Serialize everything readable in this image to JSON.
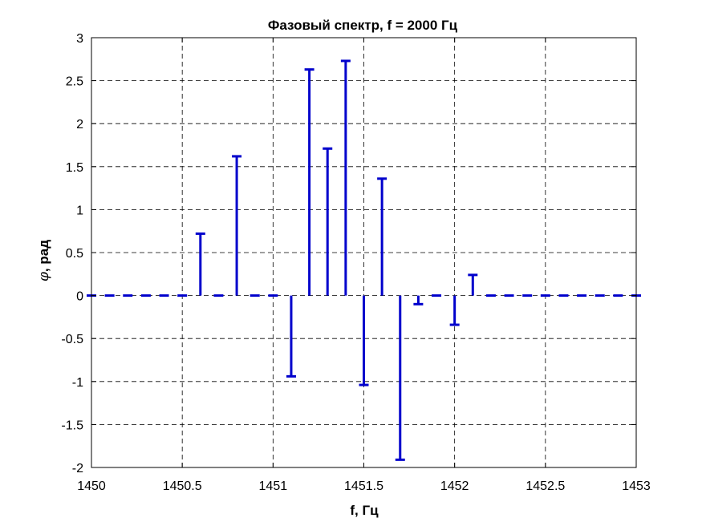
{
  "chart_data": {
    "type": "stem",
    "title": "Фазовый спектр, f = 2000 Гц",
    "xlabel": "f, Гц",
    "ylabel_symbol": "φ",
    "ylabel_rest": ", рад",
    "xlim": [
      1450,
      1453
    ],
    "ylim": [
      -2,
      3
    ],
    "grid": true,
    "x_ticks": [
      1450,
      1450.5,
      1451,
      1451.5,
      1452,
      1452.5,
      1453
    ],
    "x_tick_labels": [
      "1450",
      "1450.5",
      "1451",
      "1451.5",
      "1452",
      "1452.5",
      "1453"
    ],
    "y_ticks": [
      -2,
      -1.5,
      -1,
      -0.5,
      0,
      0.5,
      1,
      1.5,
      2,
      2.5,
      3
    ],
    "y_tick_labels": [
      "-2",
      "-1.5",
      "-1",
      "-0.5",
      "0",
      "0.5",
      "1",
      "1.5",
      "2",
      "2.5",
      "3"
    ],
    "color": "#0000cc",
    "series": [
      {
        "x": [
          1450.0,
          1450.1,
          1450.2,
          1450.3,
          1450.4,
          1450.5,
          1450.6,
          1450.7,
          1450.8,
          1450.9,
          1451.0,
          1451.1,
          1451.2,
          1451.3,
          1451.4,
          1451.5,
          1451.6,
          1451.7,
          1451.8,
          1451.9,
          1452.0,
          1452.1,
          1452.2,
          1452.3,
          1452.4,
          1452.5,
          1452.6,
          1452.7,
          1452.8,
          1452.9,
          1453.0
        ],
        "y": [
          0,
          0,
          0,
          0,
          0,
          0,
          0.72,
          0,
          1.62,
          0,
          0,
          -0.94,
          2.63,
          1.71,
          2.73,
          -1.04,
          1.36,
          -1.91,
          -0.1,
          0,
          -0.34,
          0.24,
          0,
          0,
          0,
          0,
          0,
          0,
          0,
          0,
          0
        ]
      }
    ]
  }
}
